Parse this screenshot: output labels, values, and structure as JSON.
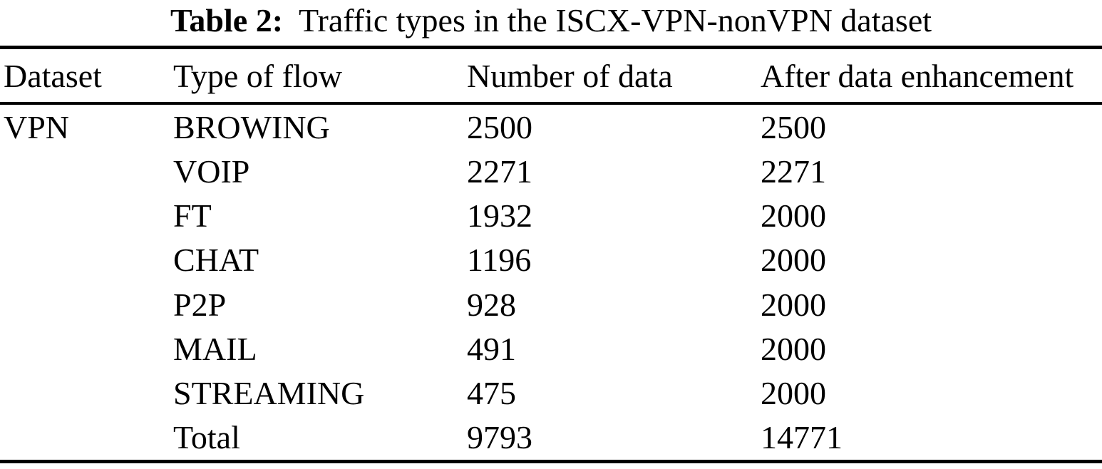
{
  "caption": {
    "label": "Table 2:",
    "text": "Traffic types in the ISCX-VPN-nonVPN dataset"
  },
  "table": {
    "columns": [
      "Dataset",
      "Type of flow",
      "Number of data",
      "After data enhancement"
    ],
    "rows": [
      [
        "VPN",
        "BROWING",
        "2500",
        "2500"
      ],
      [
        "",
        "VOIP",
        "2271",
        "2271"
      ],
      [
        "",
        "FT",
        "1932",
        "2000"
      ],
      [
        "",
        "CHAT",
        "1196",
        "2000"
      ],
      [
        "",
        "P2P",
        "928",
        "2000"
      ],
      [
        "",
        "MAIL",
        "491",
        "2000"
      ],
      [
        "",
        "STREAMING",
        "475",
        "2000"
      ],
      [
        "",
        "Total",
        "9793",
        "14771"
      ]
    ]
  },
  "colors": {
    "text": "#000000",
    "background": "#ffffff",
    "rule": "#000000"
  }
}
